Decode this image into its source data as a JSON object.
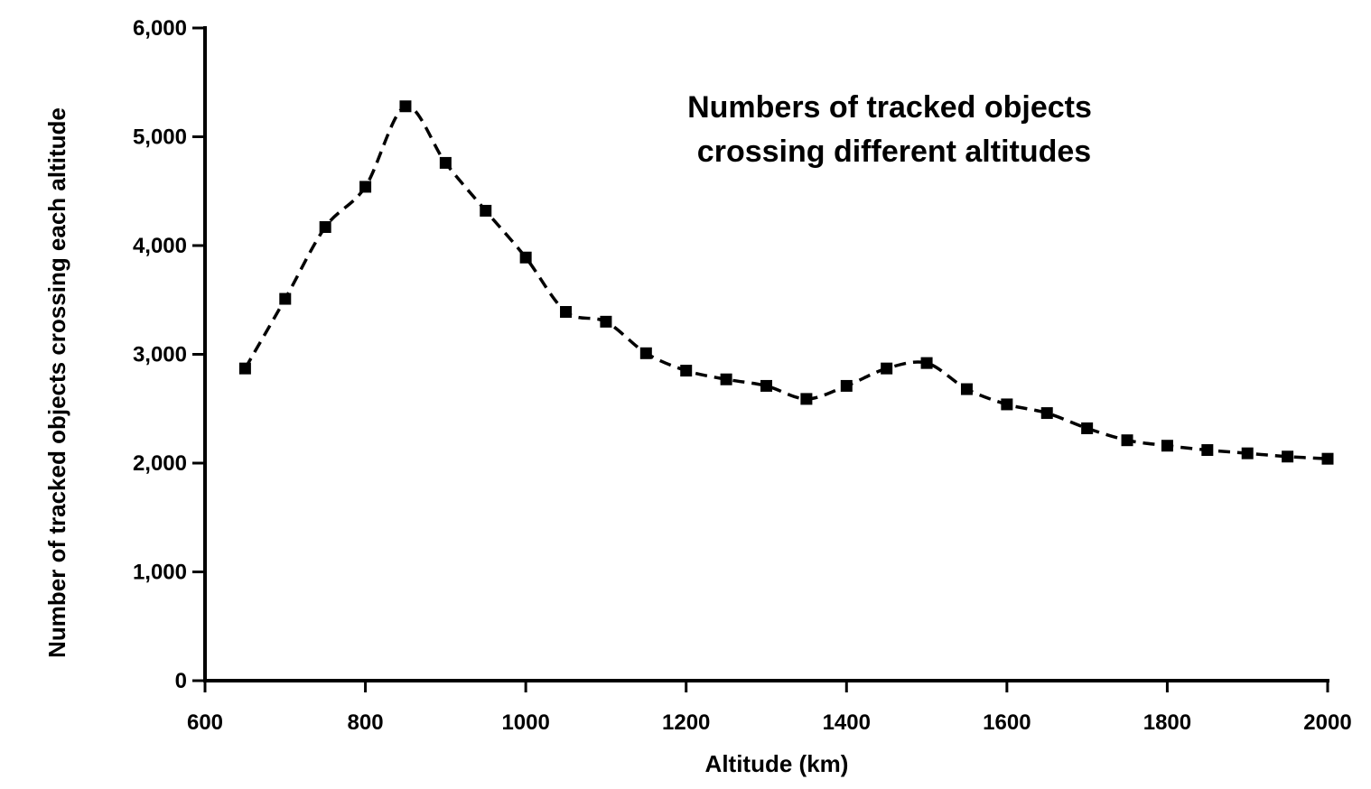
{
  "chart_data": {
    "type": "line",
    "title": "",
    "annotation": [
      "Numbers of tracked objects",
      "crossing different altitudes"
    ],
    "xlabel": "Altitude (km)",
    "ylabel": "Number of tracked objects crossing each altitude",
    "xlim": [
      600,
      2000
    ],
    "ylim": [
      0,
      6000
    ],
    "xticks": [
      600,
      800,
      1000,
      1200,
      1400,
      1600,
      1800,
      2000
    ],
    "xtick_labels": [
      "600",
      "800",
      "1000",
      "1200",
      "1400",
      "1600",
      "1800",
      "2000"
    ],
    "yticks": [
      0,
      1000,
      2000,
      3000,
      4000,
      5000,
      6000
    ],
    "ytick_labels": [
      "0",
      "1,000",
      "2,000",
      "3,000",
      "4,000",
      "5,000",
      "6,000"
    ],
    "grid": false,
    "legend": "none",
    "line_style": "dashed",
    "marker": "square",
    "color": "#000000",
    "series": [
      {
        "x": [
          650,
          700,
          750,
          800,
          850,
          900,
          950,
          1000,
          1050,
          1100,
          1150,
          1200,
          1250,
          1300,
          1350,
          1400,
          1450,
          1500,
          1550,
          1600,
          1650,
          1700,
          1750,
          1800,
          1850,
          1900,
          1950,
          2000
        ],
        "y": [
          2870,
          3510,
          4170,
          4540,
          5280,
          4760,
          4320,
          3890,
          3390,
          3300,
          3010,
          2850,
          2770,
          2710,
          2590,
          2710,
          2870,
          2920,
          2680,
          2540,
          2460,
          2320,
          2210,
          2160,
          2120,
          2090,
          2060,
          2040
        ]
      }
    ]
  }
}
